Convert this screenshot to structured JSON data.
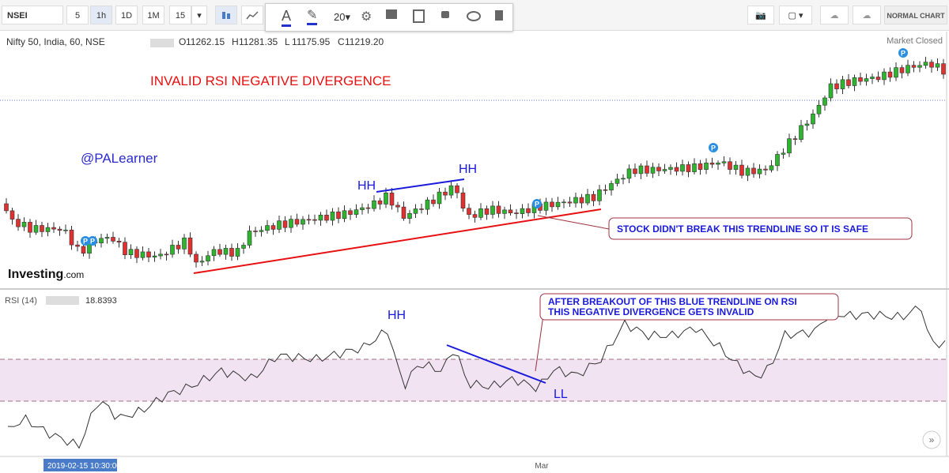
{
  "toolbar": {
    "symbol": "NSEI",
    "intervals": [
      "5",
      "1h",
      "1D",
      "1M",
      "15"
    ],
    "active_interval": 1,
    "font_size": "20",
    "mode": "NORMAL CHART"
  },
  "chart": {
    "title": "Nifty 50, India, 60, NSE",
    "ohlc": [
      {
        "label": "O",
        "value": "11262.15"
      },
      {
        "label": "H",
        "value": "11281.35"
      },
      {
        "label": "L",
        "value": "11175.95"
      },
      {
        "label": "C",
        "value": "11219.20"
      }
    ],
    "status": "Market Closed",
    "pin_label": "P",
    "annotations": {
      "heading": "INVALID RSI NEGATIVE DIVERGENCE",
      "author": "@PALearner",
      "hh_left": "HH",
      "hh_right": "HH",
      "callout": "STOCK DIDN'T BREAK THIS TRENDLINE SO IT IS SAFE"
    }
  },
  "logo": {
    "text": "Investing",
    "suffix": ".com"
  },
  "rsi": {
    "title": "RSI (14)",
    "value": "18.8393",
    "annotations": {
      "hh": "HH",
      "ll": "LL",
      "callout_lines": [
        "AFTER BREAKOUT OF THIS  BLUE TRENDLINE ON RSI",
        "THIS NEGATIVE DIVERGENCE GETS INVALID"
      ]
    }
  },
  "time_axis": {
    "cursor_label": "2019-02-15 10:30:00",
    "labels": [
      "Mar"
    ]
  }
}
